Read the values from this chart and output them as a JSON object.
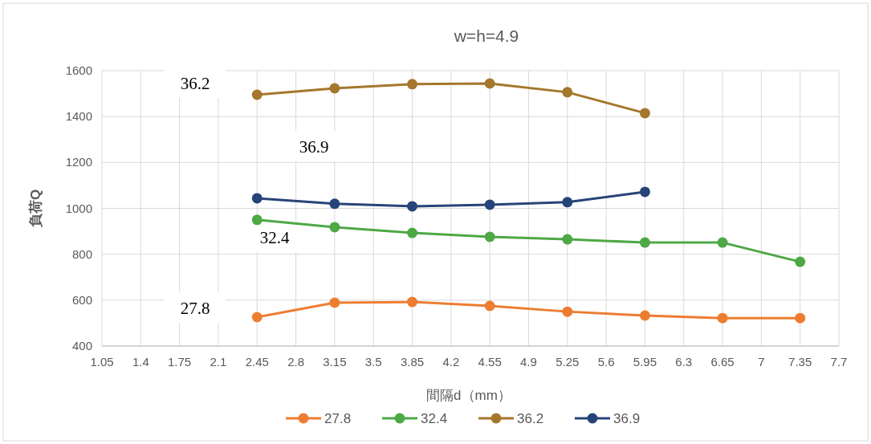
{
  "chart_data": {
    "type": "line",
    "title": "w=h=4.9",
    "xlabel": "間隔d（mm）",
    "ylabel": "負荷Q",
    "xlim": [
      1.05,
      7.7
    ],
    "xticks": [
      1.05,
      1.4,
      1.75,
      2.1,
      2.45,
      2.8,
      3.15,
      3.5,
      3.85,
      4.2,
      4.55,
      4.9,
      5.25,
      5.6,
      5.95,
      6.3,
      6.65,
      7,
      7.35,
      7.7
    ],
    "ylim": [
      400,
      1600
    ],
    "yticks": [
      400,
      600,
      800,
      1000,
      1200,
      1400,
      1600
    ],
    "grid": true,
    "legend": "bottom",
    "marker": "circle",
    "line_style": "solid",
    "series": [
      {
        "name": "27.8",
        "color": "#ed7d31",
        "x": [
          2.45,
          3.15,
          3.85,
          4.55,
          5.25,
          5.95,
          6.65,
          7.35
        ],
        "values": [
          526,
          589,
          592,
          575,
          550,
          533,
          522,
          522
        ]
      },
      {
        "name": "32.4",
        "color": "#4ea846",
        "x": [
          2.45,
          3.15,
          3.85,
          4.55,
          5.25,
          5.95,
          6.65,
          7.35
        ],
        "values": [
          950,
          918,
          893,
          876,
          865,
          851,
          851,
          767
        ]
      },
      {
        "name": "36.2",
        "color": "#a5772c",
        "x": [
          2.45,
          3.15,
          3.85,
          4.55,
          5.25,
          5.95
        ],
        "values": [
          1495,
          1523,
          1541,
          1544,
          1506,
          1415
        ]
      },
      {
        "name": "36.9",
        "color": "#264478",
        "x": [
          2.45,
          3.15,
          3.85,
          4.55,
          5.25,
          5.95
        ],
        "values": [
          1044,
          1020,
          1009,
          1016,
          1027,
          1072
        ]
      }
    ],
    "annotations": [
      "36.2",
      "36.9",
      "32.4",
      "27.8"
    ]
  }
}
